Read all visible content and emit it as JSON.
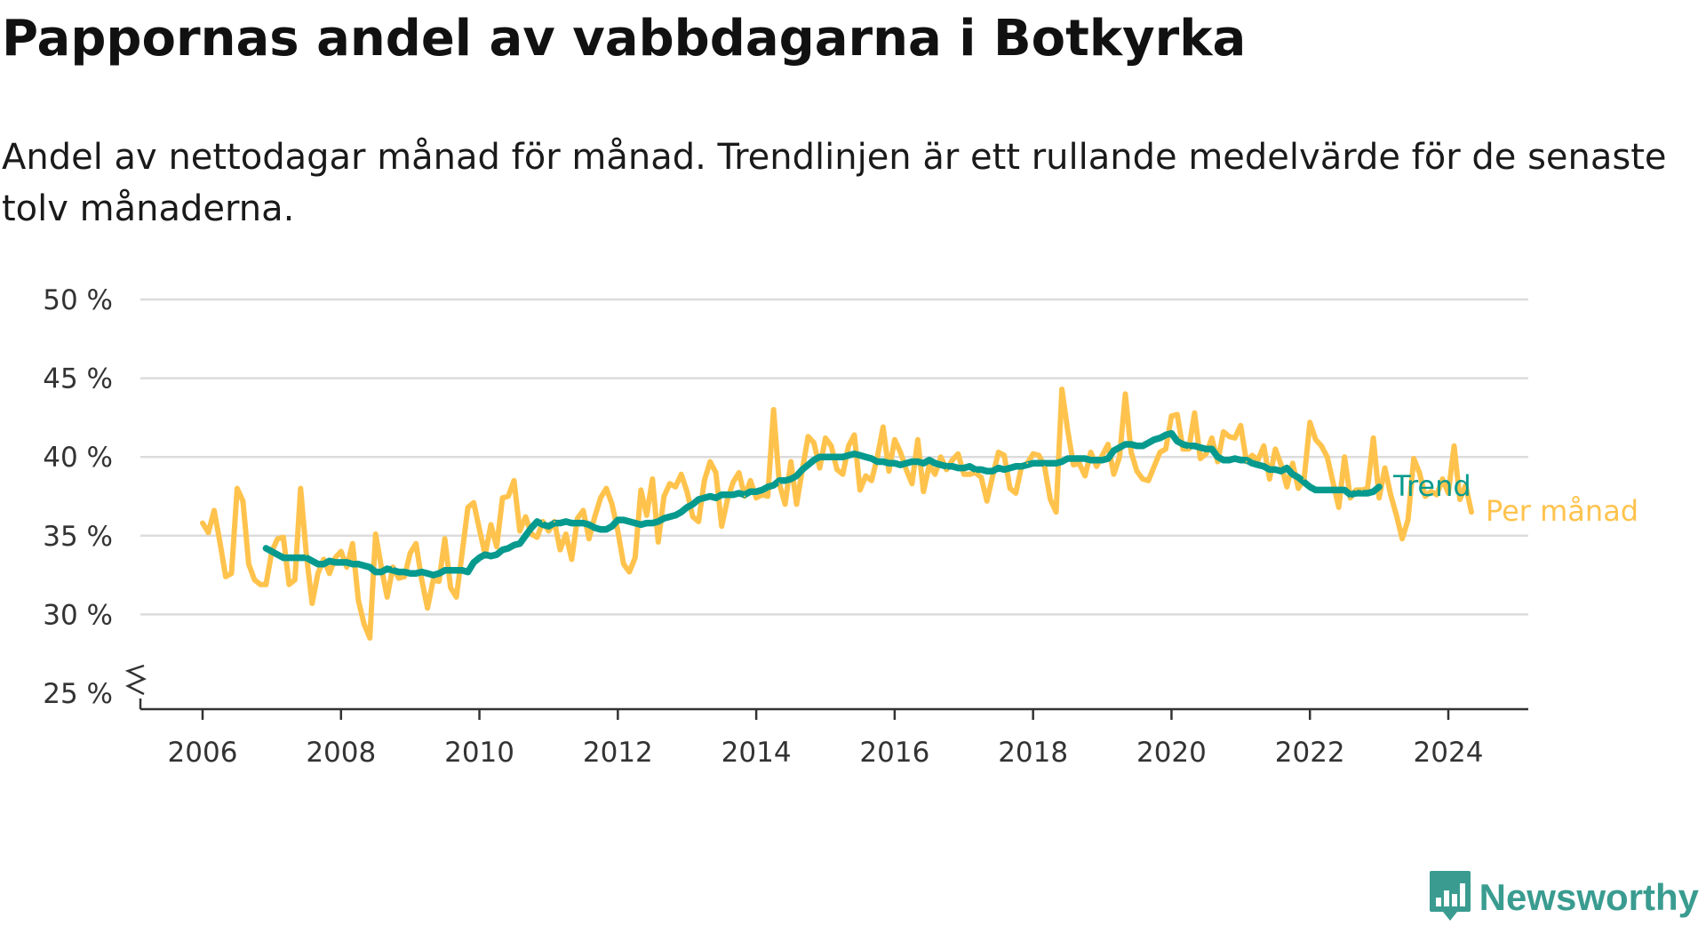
{
  "title": "Pappornas andel av vabbdagarna i Botkyrka",
  "subtitle": "Andel av nettodagar månad för månad. Trendlinjen är ett rullande medelvärde för de senaste tolv månaderna.",
  "brand": {
    "name": "Newsworthy",
    "icon": "newsworthy-logo-icon",
    "color": "#3a9c90"
  },
  "chart_data": {
    "type": "line",
    "title": "Pappornas andel av vabbdagarna i Botkyrka",
    "subtitle": "Andel av nettodagar månad för månad. Trendlinjen är ett rullande medelvärde för de senaste tolv månaderna.",
    "xlabel": "",
    "ylabel": "",
    "ylim": [
      25,
      50
    ],
    "y_ticks": [
      25,
      30,
      35,
      40,
      45,
      50
    ],
    "y_tick_labels": [
      "25 %",
      "30 %",
      "35 %",
      "40 %",
      "45 %",
      "50 %"
    ],
    "y_axis_break": true,
    "x_ticks": [
      2006,
      2008,
      2010,
      2012,
      2014,
      2016,
      2018,
      2020,
      2022,
      2024
    ],
    "x_tick_labels": [
      "2006",
      "2008",
      "2010",
      "2012",
      "2014",
      "2016",
      "2018",
      "2020",
      "2022",
      "2024"
    ],
    "grid": "horizontal",
    "legend": "inline-right",
    "series": [
      {
        "name": "Per månad",
        "color": "#ffc34d",
        "start": "2006-01",
        "values": [
          35.8,
          35.2,
          36.6,
          34.6,
          32.4,
          32.6,
          38.0,
          37.2,
          33.2,
          32.2,
          31.9,
          31.9,
          34.0,
          34.8,
          34.9,
          31.9,
          32.2,
          38.0,
          33.8,
          30.7,
          32.6,
          33.5,
          32.6,
          33.6,
          34.0,
          33.0,
          34.5,
          30.9,
          29.4,
          28.5,
          35.1,
          33.0,
          31.1,
          33.0,
          32.3,
          32.4,
          33.9,
          34.5,
          32.2,
          30.4,
          32.2,
          32.1,
          34.8,
          31.7,
          31.1,
          33.9,
          36.8,
          37.1,
          35.4,
          33.8,
          35.7,
          34.3,
          37.4,
          37.5,
          38.5,
          35.3,
          36.2,
          35.1,
          34.9,
          35.9,
          35.3,
          35.9,
          34.1,
          35.1,
          33.5,
          36.1,
          36.6,
          34.8,
          36.2,
          37.4,
          38.0,
          37.0,
          35.3,
          33.2,
          32.7,
          33.6,
          37.9,
          36.3,
          38.6,
          34.6,
          37.5,
          38.3,
          38.1,
          38.9,
          37.8,
          36.2,
          35.9,
          38.5,
          39.7,
          39.0,
          35.6,
          37.3,
          38.4,
          39.0,
          37.5,
          38.5,
          37.4,
          37.6,
          37.5,
          43.0,
          38.3,
          37.0,
          39.7,
          37.0,
          39.2,
          41.3,
          40.9,
          39.3,
          41.2,
          40.7,
          39.2,
          38.9,
          40.7,
          41.4,
          37.9,
          38.8,
          38.5,
          40.0,
          41.9,
          39.1,
          41.1,
          40.3,
          39.2,
          38.3,
          41.1,
          37.8,
          39.5,
          38.9,
          40.0,
          39.2,
          39.8,
          40.2,
          38.9,
          38.9,
          39.0,
          38.7,
          37.2,
          38.8,
          40.3,
          40.1,
          38.0,
          37.7,
          39.4,
          39.6,
          40.2,
          40.1,
          39.4,
          37.3,
          36.5,
          44.3,
          41.7,
          39.5,
          39.6,
          38.8,
          40.3,
          39.4,
          40.1,
          40.8,
          38.9,
          40.0,
          44.0,
          40.3,
          39.1,
          38.6,
          38.5,
          39.4,
          40.3,
          40.5,
          42.6,
          42.7,
          40.5,
          40.5,
          42.8,
          39.9,
          40.2,
          41.2,
          39.7,
          41.6,
          41.3,
          41.2,
          42.0,
          39.7,
          40.1,
          39.8,
          40.7,
          38.6,
          40.5,
          39.5,
          38.1,
          39.6,
          38.0,
          38.6,
          42.2,
          41.1,
          40.7,
          40.0,
          38.4,
          36.8,
          40.0,
          37.4,
          37.9,
          37.9,
          38.0,
          41.2,
          37.4,
          39.3,
          37.6,
          36.3,
          34.8,
          36.0,
          39.9,
          39.0,
          37.5,
          37.8,
          37.6,
          38.6,
          37.7,
          40.7,
          37.3,
          38.2,
          36.5
        ]
      },
      {
        "name": "Trend",
        "color": "#069a8e",
        "start": "2006-12",
        "values": [
          34.2,
          34.0,
          33.8,
          33.6,
          33.6,
          33.6,
          33.6,
          33.6,
          33.4,
          33.2,
          33.2,
          33.4,
          33.3,
          33.3,
          33.3,
          33.2,
          33.2,
          33.1,
          33.0,
          32.7,
          32.7,
          32.9,
          32.8,
          32.7,
          32.7,
          32.6,
          32.6,
          32.7,
          32.6,
          32.5,
          32.6,
          32.8,
          32.8,
          32.8,
          32.8,
          32.7,
          33.3,
          33.6,
          33.8,
          33.7,
          33.8,
          34.1,
          34.2,
          34.4,
          34.5,
          35.0,
          35.5,
          35.9,
          35.7,
          35.6,
          35.8,
          35.8,
          35.9,
          35.8,
          35.8,
          35.8,
          35.7,
          35.5,
          35.4,
          35.4,
          35.6,
          36.0,
          36.0,
          35.9,
          35.8,
          35.7,
          35.8,
          35.8,
          35.9,
          36.1,
          36.2,
          36.3,
          36.5,
          36.8,
          37.0,
          37.3,
          37.4,
          37.5,
          37.4,
          37.6,
          37.6,
          37.6,
          37.7,
          37.6,
          37.8,
          37.8,
          37.9,
          38.1,
          38.2,
          38.5,
          38.5,
          38.6,
          38.8,
          39.2,
          39.5,
          39.8,
          40.0,
          40.0,
          40.0,
          40.0,
          40.0,
          40.1,
          40.2,
          40.1,
          40.0,
          39.9,
          39.7,
          39.7,
          39.6,
          39.6,
          39.5,
          39.6,
          39.7,
          39.7,
          39.6,
          39.8,
          39.6,
          39.5,
          39.4,
          39.4,
          39.3,
          39.3,
          39.4,
          39.2,
          39.2,
          39.1,
          39.1,
          39.3,
          39.2,
          39.3,
          39.4,
          39.4,
          39.5,
          39.6,
          39.6,
          39.6,
          39.6,
          39.6,
          39.7,
          39.9,
          39.9,
          39.9,
          39.9,
          39.8,
          39.8,
          39.8,
          39.9,
          40.4,
          40.6,
          40.8,
          40.8,
          40.7,
          40.7,
          40.9,
          41.1,
          41.2,
          41.4,
          41.5,
          41.0,
          40.8,
          40.7,
          40.7,
          40.6,
          40.5,
          40.5,
          40.0,
          39.8,
          39.8,
          39.9,
          39.8,
          39.8,
          39.6,
          39.5,
          39.4,
          39.2,
          39.2,
          39.1,
          39.3,
          38.9,
          38.7,
          38.4,
          38.1,
          37.9,
          37.9,
          37.9,
          37.9,
          37.9,
          37.9,
          37.6,
          37.7,
          37.7,
          37.7,
          37.8,
          38.1
        ]
      }
    ]
  }
}
